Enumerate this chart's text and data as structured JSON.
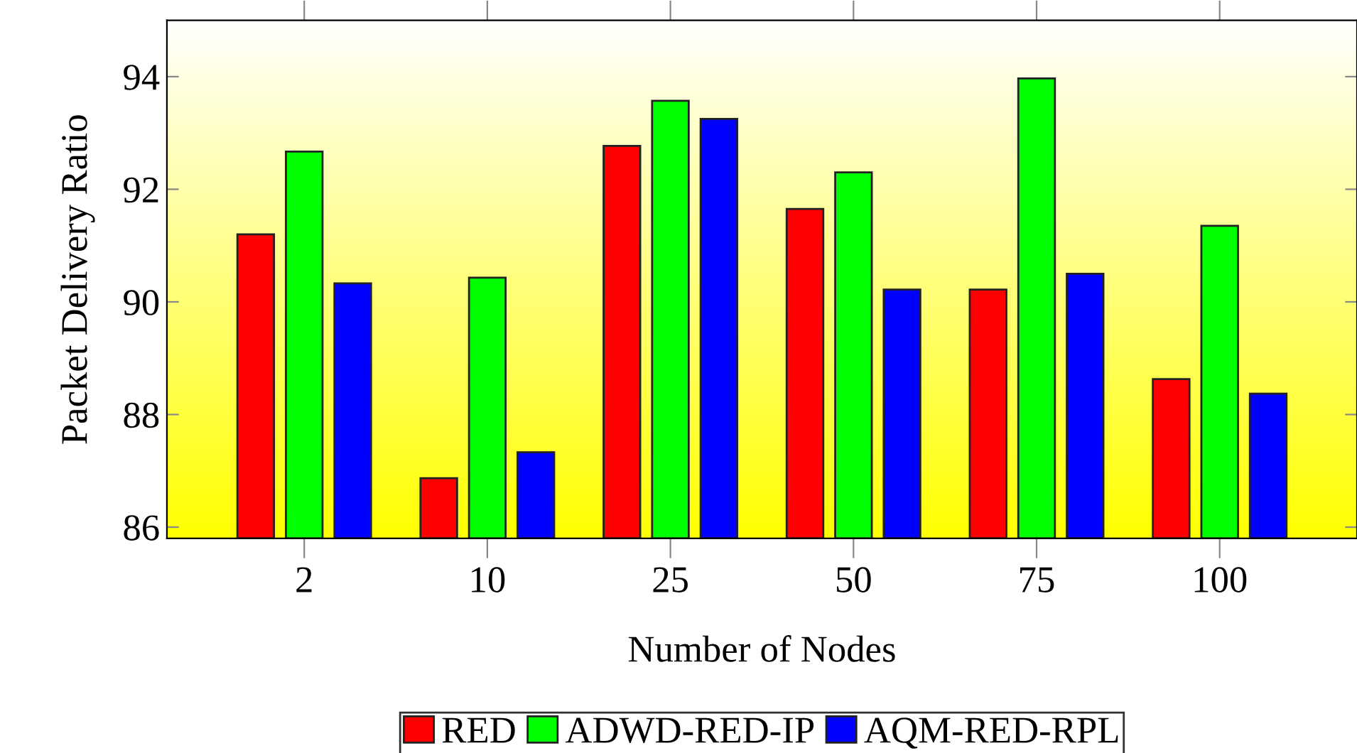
{
  "chart_data": {
    "type": "bar",
    "xlabel": "Number of Nodes",
    "ylabel": "Packet Delivery Ratio",
    "categories": [
      "2",
      "10",
      "25",
      "50",
      "75",
      "100"
    ],
    "series": [
      {
        "name": "RED",
        "color": "#ff0000",
        "values": [
          91.2,
          86.87,
          92.77,
          91.65,
          90.22,
          88.63
        ]
      },
      {
        "name": "ADWD-RED-IP",
        "color": "#00ff00",
        "values": [
          92.67,
          90.43,
          93.57,
          92.3,
          93.97,
          91.35
        ]
      },
      {
        "name": "AQM-RED-RPL",
        "color": "#0000ff",
        "values": [
          90.33,
          87.33,
          93.25,
          90.22,
          90.5,
          88.37
        ]
      }
    ],
    "ylim": [
      85.8,
      95
    ],
    "yticks": [
      86,
      88,
      90,
      92,
      94
    ],
    "grid": false,
    "legend": "bottom"
  }
}
